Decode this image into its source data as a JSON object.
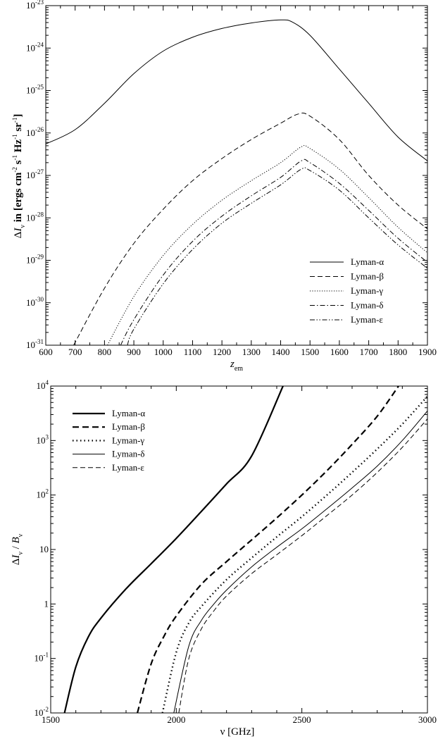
{
  "chart_data": [
    {
      "type": "line",
      "title": "",
      "xlabel": "z_em",
      "ylabel": "ΔI_ν in [ergs cm^-2 s^-1 Hz^-1 sr^-1]",
      "xlim": [
        600,
        1900
      ],
      "ylim": [
        1e-31,
        1e-23
      ],
      "yscale": "log",
      "grid": false,
      "legend_position": "bottom-right",
      "x_ticks": [
        "600",
        "700",
        "800",
        "900",
        "1000",
        "1100",
        "1200",
        "1300",
        "1400",
        "1500",
        "1600",
        "1700",
        "1800",
        "1900"
      ],
      "y_ticks": [
        {
          "base": "10",
          "exp": "-31"
        },
        {
          "base": "10",
          "exp": "-30"
        },
        {
          "base": "10",
          "exp": "-29"
        },
        {
          "base": "10",
          "exp": "-28"
        },
        {
          "base": "10",
          "exp": "-27"
        },
        {
          "base": "10",
          "exp": "-26"
        },
        {
          "base": "10",
          "exp": "-25"
        },
        {
          "base": "10",
          "exp": "-24"
        },
        {
          "base": "10",
          "exp": "-23"
        }
      ],
      "series": [
        {
          "name": "Lyman-α",
          "dash": "solid",
          "x": [
            600,
            700,
            800,
            900,
            1000,
            1100,
            1200,
            1300,
            1400,
            1440,
            1500,
            1600,
            1700,
            1800,
            1900
          ],
          "y": [
            5.5e-27,
            1.2e-26,
            5e-26,
            2.5e-25,
            8.5e-25,
            1.8e-24,
            2.9e-24,
            3.9e-24,
            4.6e-24,
            4.1e-24,
            2e-24,
            3.2e-25,
            5e-26,
            8e-27,
            2.2e-27
          ]
        },
        {
          "name": "Lyman-β",
          "dash": "dashed",
          "x": [
            695,
            800,
            900,
            1000,
            1100,
            1200,
            1300,
            1400,
            1460,
            1500,
            1600,
            1700,
            1800,
            1900
          ],
          "y": [
            1e-31,
            2.2e-30,
            2.5e-29,
            1.6e-28,
            7.5e-28,
            2.5e-27,
            7e-27,
            1.7e-26,
            2.8e-26,
            2.5e-26,
            7e-27,
            1e-27,
            2e-28,
            5.5e-29
          ]
        },
        {
          "name": "Lyman-γ",
          "dash": "dotted",
          "x": [
            810,
            900,
            1000,
            1100,
            1200,
            1300,
            1400,
            1470,
            1500,
            1600,
            1700,
            1800,
            1900
          ],
          "y": [
            1e-31,
            1.4e-30,
            1.3e-29,
            7e-29,
            2.6e-28,
            7.5e-28,
            2e-27,
            4.7e-27,
            4.3e-27,
            1.4e-27,
            3e-28,
            6e-29,
            1.5e-29
          ]
        },
        {
          "name": "Lyman-δ",
          "dash": "dashdot",
          "x": [
            855,
            900,
            1000,
            1100,
            1200,
            1300,
            1400,
            1470,
            1500,
            1600,
            1700,
            1800,
            1900
          ],
          "y": [
            1e-31,
            4e-31,
            4.5e-30,
            2.8e-29,
            1.1e-28,
            3.3e-28,
            9e-28,
            2.2e-27,
            2e-27,
            6.5e-28,
            1.5e-28,
            3.3e-29,
            9e-30
          ]
        },
        {
          "name": "Lyman-ε",
          "dash": "dashdotdot",
          "x": [
            878,
            900,
            1000,
            1100,
            1200,
            1300,
            1400,
            1470,
            1500,
            1600,
            1700,
            1800,
            1900
          ],
          "y": [
            1e-31,
            2.4e-31,
            2.8e-30,
            1.8e-29,
            7.5e-29,
            2.2e-28,
            6e-28,
            1.4e-27,
            1.3e-27,
            4.5e-28,
            1e-28,
            2.3e-29,
            6.5e-30
          ]
        }
      ]
    },
    {
      "type": "line",
      "title": "",
      "xlabel": "ν [GHz]",
      "ylabel": "ΔI_ν / B_ν",
      "xlim": [
        1500,
        3000
      ],
      "ylim": [
        0.01,
        10000
      ],
      "yscale": "log",
      "grid": false,
      "legend_position": "top-left",
      "x_ticks": [
        "1500",
        "2000",
        "2500",
        "3000"
      ],
      "y_ticks": [
        {
          "base": "10",
          "exp": "-2"
        },
        {
          "base": "10",
          "exp": "-1"
        },
        {
          "base": "1",
          "exp": ""
        },
        {
          "base": "10",
          "exp": ""
        },
        {
          "base": "10",
          "exp": "2"
        },
        {
          "base": "10",
          "exp": "3"
        },
        {
          "base": "10",
          "exp": "4"
        }
      ],
      "series": [
        {
          "name": "Lyman-α",
          "dash": "thick-solid",
          "x": [
            1555,
            1600,
            1650,
            1700,
            1800,
            1900,
            2000,
            2100,
            2200,
            2300,
            2425
          ],
          "y": [
            0.01,
            0.07,
            0.25,
            0.55,
            1.9,
            5.5,
            16,
            50,
            160,
            520,
            10000
          ]
        },
        {
          "name": "Lyman-β",
          "dash": "thick-dashed",
          "x": [
            1845,
            1900,
            1950,
            2000,
            2100,
            2200,
            2300,
            2400,
            2500,
            2600,
            2700,
            2800,
            2885
          ],
          "y": [
            0.01,
            0.08,
            0.25,
            0.6,
            2.3,
            6,
            15,
            38,
            100,
            280,
            850,
            2800,
            10000
          ]
        },
        {
          "name": "Lyman-γ",
          "dash": "thick-dotted",
          "x": [
            1945,
            2000,
            2050,
            2100,
            2200,
            2300,
            2400,
            2500,
            2600,
            2700,
            2800,
            2900,
            3000
          ],
          "y": [
            0.01,
            0.13,
            0.45,
            0.9,
            2.8,
            7,
            17,
            40,
            100,
            260,
            700,
            2000,
            6500
          ]
        },
        {
          "name": "Lyman-δ",
          "dash": "solid",
          "x": [
            1990,
            2050,
            2100,
            2150,
            2200,
            2300,
            2400,
            2500,
            2600,
            2700,
            2800,
            2900,
            3000
          ],
          "y": [
            0.01,
            0.17,
            0.5,
            1,
            1.8,
            4.8,
            11,
            24,
            56,
            135,
            340,
            1000,
            3500
          ]
        },
        {
          "name": "Lyman-ε",
          "dash": "dashed",
          "x": [
            2010,
            2050,
            2100,
            2150,
            2200,
            2300,
            2400,
            2500,
            2600,
            2700,
            2800,
            2900,
            3000
          ],
          "y": [
            0.01,
            0.1,
            0.35,
            0.75,
            1.4,
            3.6,
            8,
            18,
            42,
            100,
            260,
            750,
            2500
          ]
        }
      ]
    }
  ]
}
